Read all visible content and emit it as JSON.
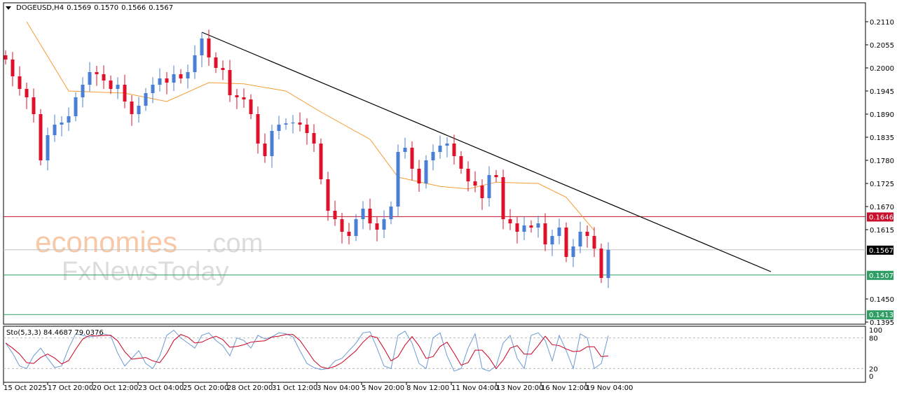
{
  "header": {
    "symbol": "DOGEUSD,H4",
    "open": "0.1569",
    "high": "0.1570",
    "low": "0.1566",
    "close": "0.1567"
  },
  "indicator": {
    "label": "Sto(5,3,3)",
    "k": "84.4687",
    "d": "79.0376"
  },
  "watermark": {
    "line1": "economies",
    "line1b": ".com",
    "line2": "FxNewsToday"
  },
  "chart_data": {
    "type": "candlestick",
    "symbol": "DOGEUSD",
    "timeframe": "H4",
    "ylim": [
      0.137,
      0.2155
    ],
    "y_ticks": [
      "0.2110",
      "0.2055",
      "0.2000",
      "0.1945",
      "0.1890",
      "0.1835",
      "0.1780",
      "0.1725",
      "0.1670",
      "0.1615",
      "0.1450",
      "0.1395"
    ],
    "x_ticks": [
      {
        "label": "15 Oct 2025",
        "index": 0
      },
      {
        "label": "17 Oct 20:00",
        "index": 6.3
      },
      {
        "label": "20 Oct 12:00",
        "index": 12.7
      },
      {
        "label": "23 Oct 04:00",
        "index": 19.2
      },
      {
        "label": "25 Oct 20:00",
        "index": 25.6
      },
      {
        "label": "28 Oct 20:00",
        "index": 31.9
      },
      {
        "label": "31 Oct 12:00",
        "index": 38.3
      },
      {
        "label": "3 Nov 04:00",
        "index": 44.7
      },
      {
        "label": "5 Nov 20:00",
        "index": 51.1
      },
      {
        "label": "8 Nov 12:00",
        "index": 57.5
      },
      {
        "label": "11 Nov 04:00",
        "index": 63.9
      },
      {
        "label": "13 Nov 20:00",
        "index": 70.3
      },
      {
        "label": "16 Nov 12:00",
        "index": 76.7
      },
      {
        "label": "19 Nov 04:00",
        "index": 83.1
      }
    ],
    "closes": [
      0.202,
      0.198,
      0.195,
      0.193,
      0.189,
      0.178,
      0.184,
      0.1865,
      0.187,
      0.1885,
      0.193,
      0.196,
      0.199,
      0.1985,
      0.197,
      0.195,
      0.196,
      0.192,
      0.189,
      0.191,
      0.194,
      0.196,
      0.1975,
      0.1965,
      0.1985,
      0.1975,
      0.199,
      0.203,
      0.207,
      0.2025,
      0.2,
      0.1995,
      0.1935,
      0.193,
      0.1925,
      0.189,
      0.182,
      0.179,
      0.185,
      0.1865,
      0.1868,
      0.187,
      0.1865,
      0.1845,
      0.182,
      0.1735,
      0.166,
      0.164,
      0.161,
      0.16,
      0.164,
      0.1665,
      0.163,
      0.1615,
      0.164,
      0.167,
      0.18,
      0.181,
      0.176,
      0.1725,
      0.178,
      0.18,
      0.1815,
      0.182,
      0.179,
      0.176,
      0.173,
      0.172,
      0.169,
      0.1745,
      0.174,
      0.164,
      0.163,
      0.161,
      0.1625,
      0.162,
      0.163,
      0.158,
      0.16,
      0.162,
      0.155,
      0.1575,
      0.161,
      0.16,
      0.157,
      0.15,
      0.1567
    ],
    "moving_average": [
      [
        3,
        0.211
      ],
      [
        9,
        0.1945
      ],
      [
        17,
        0.194
      ],
      [
        23,
        0.192
      ],
      [
        29,
        0.1965
      ],
      [
        34,
        0.1962
      ],
      [
        40,
        0.1945
      ],
      [
        45,
        0.1895
      ],
      [
        52,
        0.183
      ],
      [
        56,
        0.174
      ],
      [
        62,
        0.1718
      ],
      [
        66,
        0.1712
      ],
      [
        70,
        0.1728
      ],
      [
        76,
        0.1725
      ],
      [
        80,
        0.1692
      ],
      [
        84,
        0.1613
      ]
    ],
    "trendline": [
      [
        28,
        0.2085
      ],
      [
        109.2,
        0.1515
      ]
    ],
    "levels": [
      {
        "price": "0.1646",
        "color": "#c8102e"
      },
      {
        "price": "0.1567",
        "color": "#000000",
        "line": "#c0c0c0"
      },
      {
        "price": "0.1507",
        "color": "#2e9e64"
      },
      {
        "price": "0.1413",
        "color": "#2e9e64"
      }
    ],
    "stochastic": {
      "ylim": [
        0,
        100
      ],
      "levels": [
        "100",
        "80",
        "20",
        "0"
      ],
      "k": [
        70,
        50,
        25,
        20,
        45,
        60,
        40,
        22,
        25,
        60,
        88,
        85,
        82,
        84,
        88,
        84,
        50,
        25,
        40,
        55,
        30,
        20,
        45,
        85,
        95,
        80,
        70,
        60,
        85,
        90,
        75,
        65,
        45,
        80,
        75,
        60,
        85,
        78,
        82,
        90,
        88,
        82,
        55,
        30,
        22,
        18,
        20,
        35,
        40,
        55,
        70,
        90,
        92,
        60,
        25,
        20,
        85,
        93,
        70,
        30,
        20,
        80,
        90,
        45,
        15,
        20,
        60,
        88,
        20,
        15,
        25,
        70,
        85,
        40,
        20,
        85,
        90,
        75,
        35,
        85,
        55,
        20,
        88,
        80,
        20,
        30,
        84.47
      ]
    },
    "colors": {
      "up": "#4a7fd6",
      "down": "#e0102a",
      "ma": "#f39c33",
      "k": "#6c9bd2",
      "d": "#cc0022"
    }
  }
}
